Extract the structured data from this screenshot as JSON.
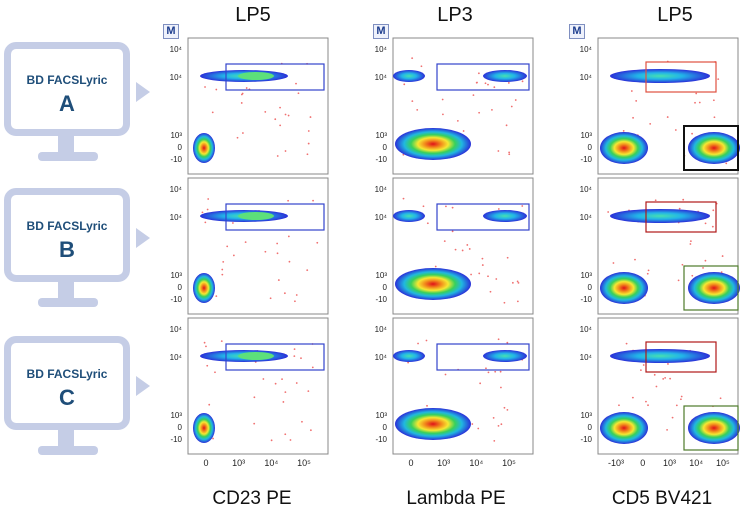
{
  "columns": [
    {
      "title": "LP5",
      "xlabel": "CD23 PE"
    },
    {
      "title": "LP3",
      "xlabel": "Lambda PE"
    },
    {
      "title": "LP5",
      "xlabel": "CD5 BV421"
    }
  ],
  "badge": "M",
  "instruments": [
    {
      "name": "BD FACSLyric",
      "letter": "A"
    },
    {
      "name": "BD FACSLyric",
      "letter": "B"
    },
    {
      "name": "BD FACSLyric",
      "letter": "C"
    }
  ],
  "axis_tick_labels": {
    "y": [
      "10⁴",
      "10³",
      "0",
      "-10"
    ],
    "x_col1": [
      "0",
      "10³",
      "10⁴",
      "10⁵"
    ],
    "x_col2": [
      "0",
      "10³",
      "10⁴",
      "10⁵"
    ],
    "x_col3": [
      "-10³",
      "0",
      "10³",
      "10⁴",
      "10⁵"
    ]
  },
  "colors": {
    "monitor": "#c5cde6",
    "monitor_text": "#1f4e79",
    "gate_blue": "#3344cc",
    "gate_red": "#e05040",
    "gate_darkred": "#b01818",
    "gate_black": "#111111",
    "gate_green": "#4d7a2a"
  },
  "chart_data": {
    "type": "scatter",
    "title": "",
    "xlabel": "",
    "ylabel": "",
    "note": "3x3 grid of flow cytometry density dot plots with gates",
    "panels": [
      {
        "row": "A",
        "column": "CD23 PE",
        "gate_color": "blue"
      },
      {
        "row": "A",
        "column": "Lambda PE",
        "gate_color": "blue"
      },
      {
        "row": "A",
        "column": "CD5 BV421",
        "gate_color": [
          "red",
          "black"
        ]
      },
      {
        "row": "B",
        "column": "CD23 PE",
        "gate_color": "blue"
      },
      {
        "row": "B",
        "column": "Lambda PE",
        "gate_color": "blue"
      },
      {
        "row": "B",
        "column": "CD5 BV421",
        "gate_color": [
          "darkred",
          "green"
        ]
      },
      {
        "row": "C",
        "column": "CD23 PE",
        "gate_color": "blue"
      },
      {
        "row": "C",
        "column": "Lambda PE",
        "gate_color": "blue"
      },
      {
        "row": "C",
        "column": "CD5 BV421",
        "gate_color": [
          "darkred",
          "green"
        ]
      }
    ]
  }
}
